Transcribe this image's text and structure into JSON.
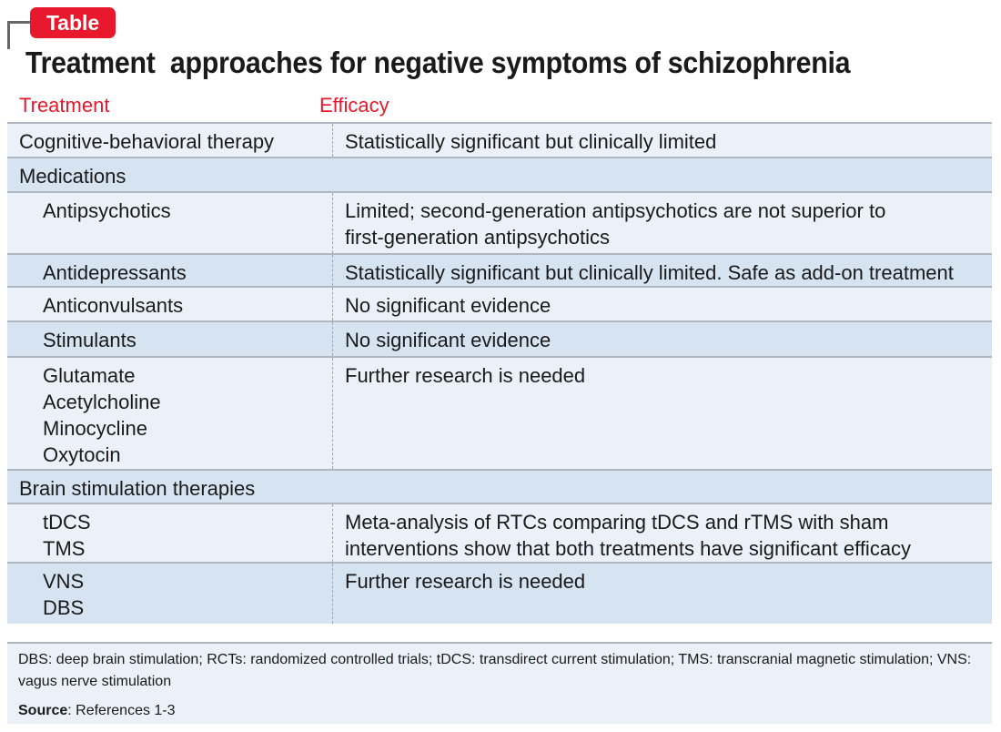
{
  "badge": "Table",
  "title": "Treatment  approaches for negative symptoms of schizophrenia",
  "headers": {
    "treatment": "Treatment",
    "efficacy": "Efficacy"
  },
  "rows": [
    {
      "treatment": [
        "Cognitive-behavioral therapy"
      ],
      "efficacy": [
        "Statistically significant but clinically limited"
      ]
    },
    {
      "section": "Medications"
    },
    {
      "treatment": [
        "Antipsychotics"
      ],
      "efficacy": [
        "Limited; second-generation antipsychotics are not superior to",
        "first-generation antipsychotics"
      ]
    },
    {
      "treatment": [
        "Antidepressants"
      ],
      "efficacy": [
        "Statistically significant but clinically limited. Safe as add-on treatment"
      ]
    },
    {
      "treatment": [
        "Anticonvulsants"
      ],
      "efficacy": [
        "No significant evidence"
      ]
    },
    {
      "treatment": [
        "Stimulants"
      ],
      "efficacy": [
        "No significant evidence"
      ]
    },
    {
      "treatment": [
        "Glutamate",
        "Acetylcholine",
        "Minocycline",
        "Oxytocin"
      ],
      "efficacy": [
        "Further research is needed"
      ]
    },
    {
      "section": "Brain stimulation therapies"
    },
    {
      "treatment": [
        "tDCS",
        "TMS"
      ],
      "efficacy": [
        "Meta-analysis of RTCs comparing tDCS and rTMS with sham",
        "interventions show that both treatments have significant efficacy"
      ]
    },
    {
      "treatment": [
        "VNS",
        "DBS"
      ],
      "efficacy": [
        "Further research is needed"
      ]
    }
  ],
  "footnote": "DBS: deep brain stimulation; RCTs: randomized controlled trials; tDCS: transdirect current stimulation; TMS: transcranial magnetic stimulation; VNS: vagus nerve stimulation",
  "source": {
    "label": "Source",
    "text": ": References 1-3"
  },
  "colors": {
    "accent": "#e8192c",
    "row_light": "#eaf1f9",
    "row_dark": "#d6e4f2"
  }
}
